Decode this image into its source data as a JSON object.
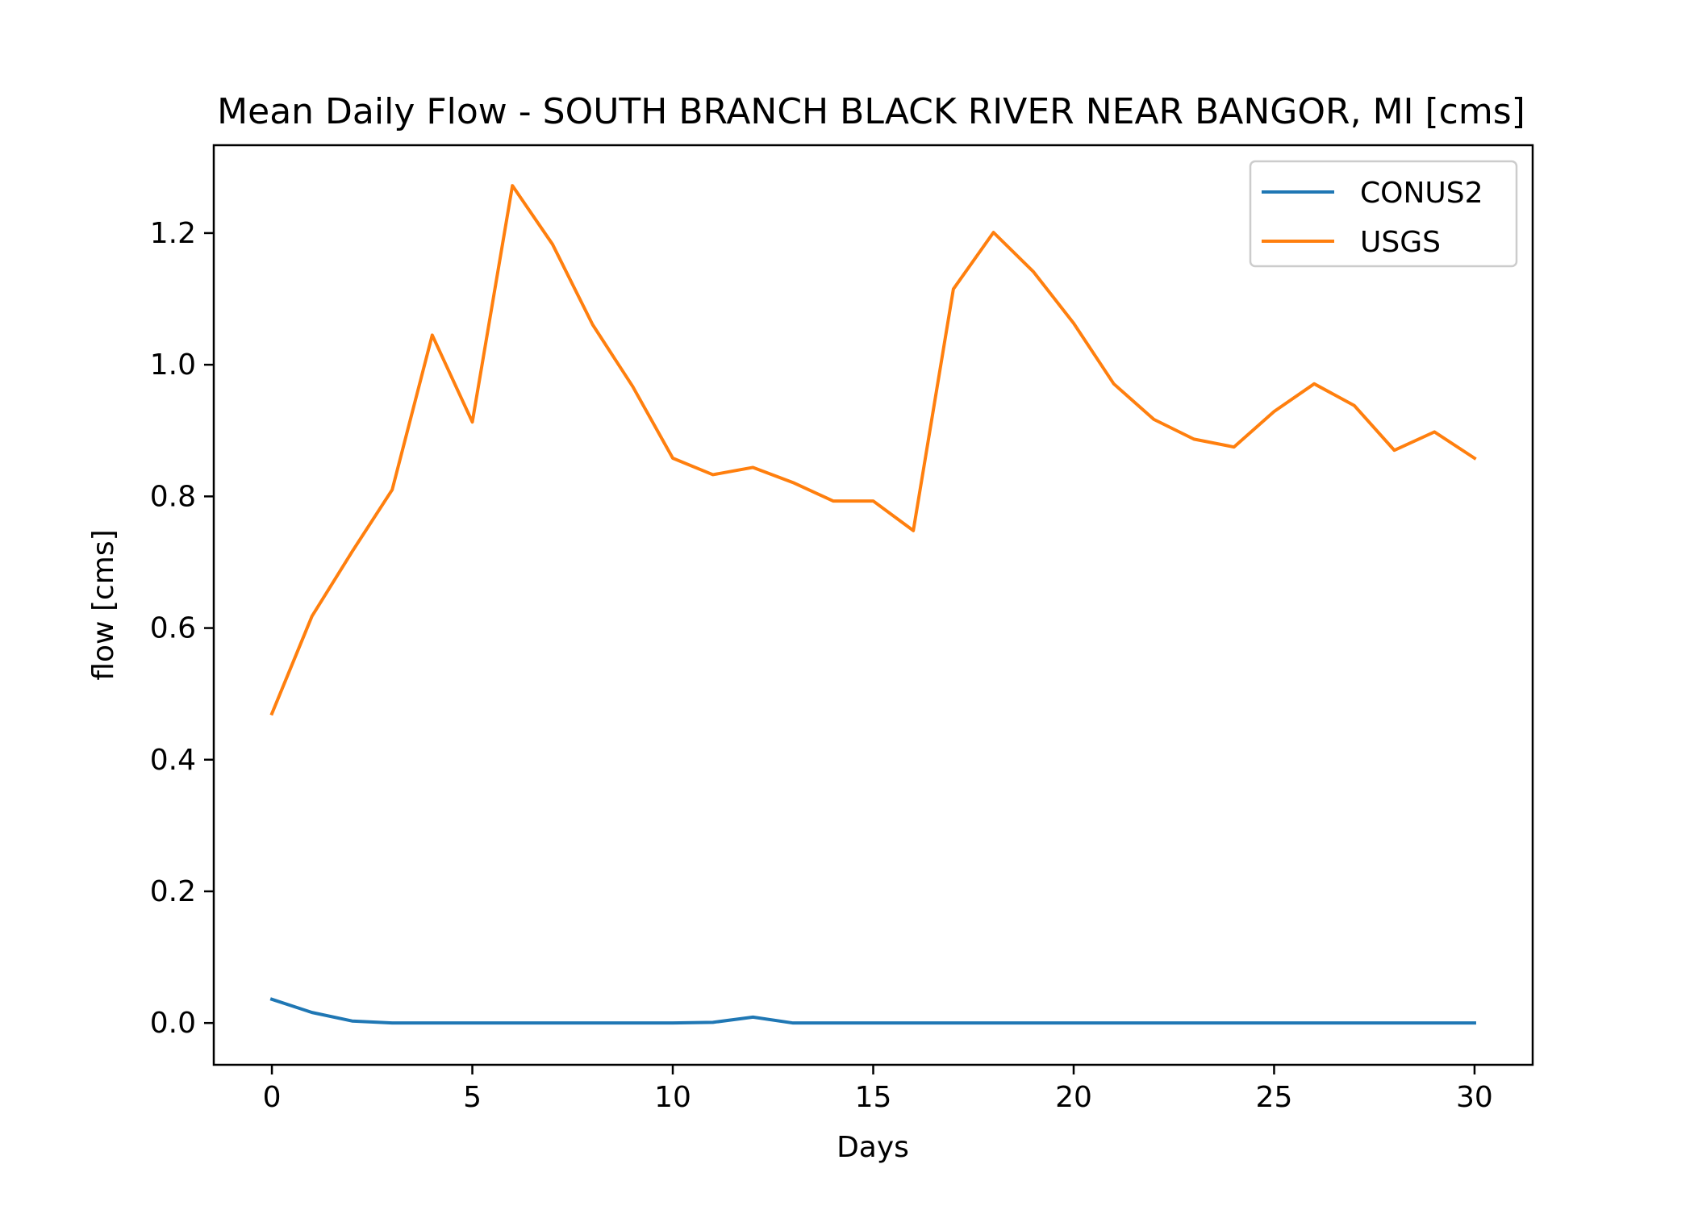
{
  "chart_data": {
    "type": "line",
    "title": "Mean Daily Flow - SOUTH BRANCH BLACK RIVER NEAR BANGOR, MI [cms]",
    "xlabel": "Days",
    "ylabel": "flow [cms]",
    "xlim": [
      -1.45,
      31.45
    ],
    "ylim": [
      -0.0635,
      1.3335
    ],
    "xticks": [
      0,
      5,
      10,
      15,
      20,
      25,
      30
    ],
    "xtick_labels": [
      "0",
      "5",
      "10",
      "15",
      "20",
      "25",
      "30"
    ],
    "yticks": [
      0.0,
      0.2,
      0.4,
      0.6,
      0.8,
      1.0,
      1.2
    ],
    "ytick_labels": [
      "0.0",
      "0.2",
      "0.4",
      "0.6",
      "0.8",
      "1.0",
      "1.2"
    ],
    "grid": false,
    "legend_position": "top-right",
    "x": [
      0,
      1,
      2,
      3,
      4,
      5,
      6,
      7,
      8,
      9,
      10,
      11,
      12,
      13,
      14,
      15,
      16,
      17,
      18,
      19,
      20,
      21,
      22,
      23,
      24,
      25,
      26,
      27,
      28,
      29,
      30
    ],
    "series": [
      {
        "name": "CONUS2",
        "color": "#1f77b4",
        "values": [
          0.036,
          0.016,
          0.003,
          0.0,
          0.0,
          0.0,
          0.0,
          0.0,
          0.0,
          0.0,
          0.0,
          0.001,
          0.009,
          0.0,
          0.0,
          0.0,
          0.0,
          0.0,
          0.0,
          0.0,
          0.0,
          0.0,
          0.0,
          0.0,
          0.0,
          0.0,
          0.0,
          0.0,
          0.0,
          0.0,
          0.0
        ]
      },
      {
        "name": "USGS",
        "color": "#ff7f0e",
        "values": [
          0.47,
          0.618,
          0.716,
          0.81,
          1.045,
          0.913,
          1.272,
          1.183,
          1.061,
          0.967,
          0.858,
          0.833,
          0.844,
          0.821,
          0.793,
          0.793,
          0.748,
          1.115,
          1.201,
          1.141,
          1.063,
          0.971,
          0.917,
          0.887,
          0.875,
          0.929,
          0.971,
          0.938,
          0.87,
          0.898,
          0.858
        ]
      }
    ]
  }
}
